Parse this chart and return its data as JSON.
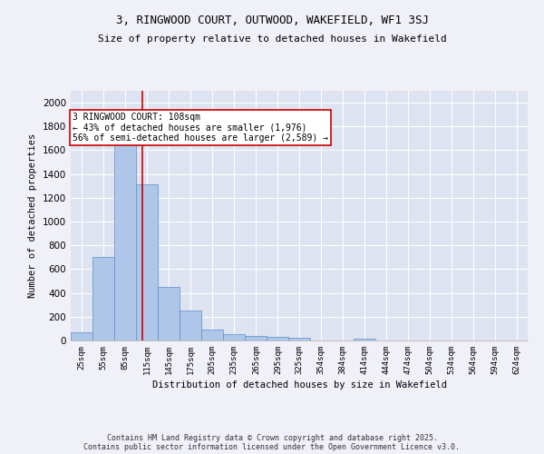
{
  "title_line1": "3, RINGWOOD COURT, OUTWOOD, WAKEFIELD, WF1 3SJ",
  "title_line2": "Size of property relative to detached houses in Wakefield",
  "xlabel": "Distribution of detached houses by size in Wakefield",
  "ylabel": "Number of detached properties",
  "bar_color": "#aec6e8",
  "bar_edge_color": "#5b8fc9",
  "background_color": "#dde3f0",
  "grid_color": "#ffffff",
  "annotation_text": "3 RINGWOOD COURT: 108sqm\n← 43% of detached houses are smaller (1,976)\n56% of semi-detached houses are larger (2,589) →",
  "vline_x": 108,
  "categories": [
    "25sqm",
    "55sqm",
    "85sqm",
    "115sqm",
    "145sqm",
    "175sqm",
    "205sqm",
    "235sqm",
    "265sqm",
    "295sqm",
    "325sqm",
    "354sqm",
    "384sqm",
    "414sqm",
    "444sqm",
    "474sqm",
    "504sqm",
    "534sqm",
    "564sqm",
    "594sqm",
    "624sqm"
  ],
  "bin_edges": [
    10,
    40,
    70,
    100,
    130,
    160,
    190,
    220,
    250,
    280,
    310,
    339,
    369,
    399,
    429,
    459,
    489,
    519,
    549,
    579,
    609,
    639
  ],
  "values": [
    65,
    700,
    1675,
    1310,
    450,
    255,
    90,
    55,
    35,
    30,
    25,
    0,
    0,
    15,
    0,
    0,
    0,
    0,
    0,
    0,
    0
  ],
  "ylim": [
    0,
    2100
  ],
  "yticks": [
    0,
    200,
    400,
    600,
    800,
    1000,
    1200,
    1400,
    1600,
    1800,
    2000
  ],
  "footer": "Contains HM Land Registry data © Crown copyright and database right 2025.\nContains public sector information licensed under the Open Government Licence v3.0.",
  "annotation_box_color": "#ffffff",
  "annotation_box_edge": "#cc0000",
  "vline_color": "#cc0000",
  "fig_bg": "#f0f0f8"
}
